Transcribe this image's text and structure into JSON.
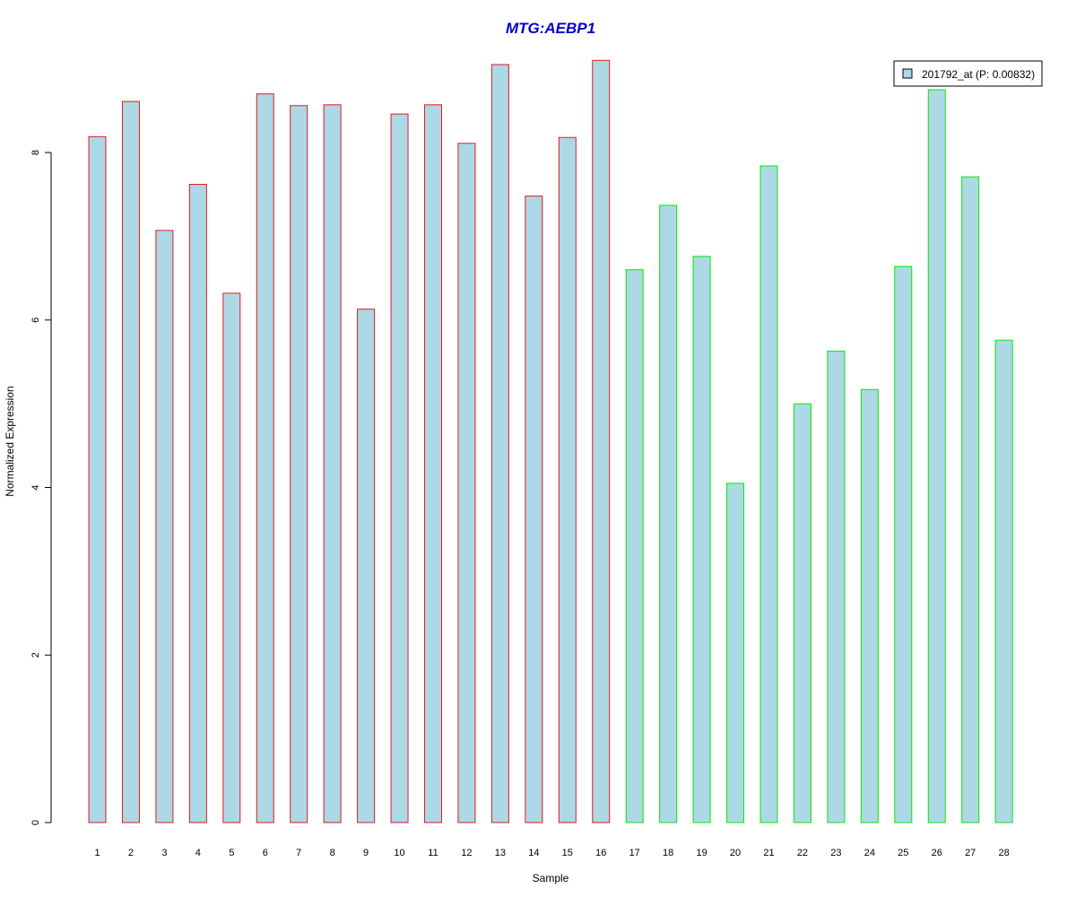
{
  "chart_data": {
    "type": "bar",
    "title": "MTG:AEBP1",
    "title_color": "#0000cc",
    "xlabel": "Sample",
    "ylabel": "Normalized Expression",
    "ylim": [
      0,
      9.2
    ],
    "yticks": [
      "0",
      "2",
      "4",
      "6",
      "8"
    ],
    "categories": [
      "1",
      "2",
      "3",
      "4",
      "5",
      "6",
      "7",
      "8",
      "9",
      "10",
      "11",
      "12",
      "13",
      "14",
      "15",
      "16",
      "17",
      "18",
      "19",
      "20",
      "21",
      "22",
      "23",
      "24",
      "25",
      "26",
      "27",
      "28"
    ],
    "values": [
      8.19,
      8.61,
      7.07,
      7.62,
      6.32,
      8.7,
      8.56,
      8.57,
      6.13,
      8.46,
      8.57,
      8.11,
      9.05,
      7.48,
      8.18,
      9.1,
      6.6,
      7.37,
      6.76,
      4.05,
      7.84,
      5.0,
      5.63,
      5.17,
      6.64,
      8.75,
      7.71,
      5.76
    ],
    "groups": [
      0,
      0,
      0,
      0,
      0,
      0,
      0,
      0,
      0,
      0,
      0,
      0,
      0,
      0,
      0,
      0,
      1,
      1,
      1,
      1,
      1,
      1,
      1,
      1,
      1,
      1,
      1,
      1
    ],
    "bar_fill": "#add8e6",
    "group_border_colors": [
      "#e41a1c",
      "#00ee00"
    ],
    "legend": {
      "position": "top-right",
      "label": "201792_at (P: 0.00832)"
    }
  }
}
